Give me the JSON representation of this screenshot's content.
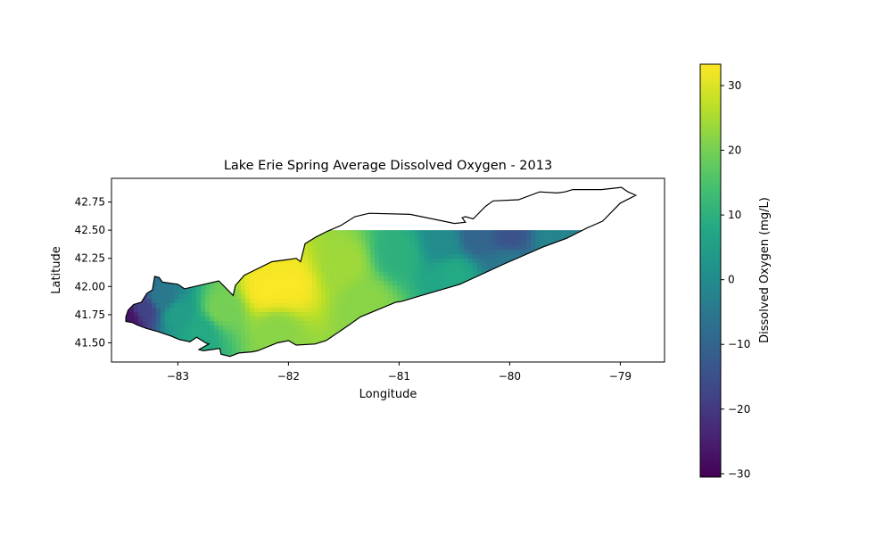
{
  "chart_data": {
    "type": "heatmap",
    "title": "Lake Erie Spring Average Dissolved Oxygen - 2013",
    "xlabel": "Longitude",
    "ylabel": "Latitude",
    "xlim": [
      -83.6,
      -78.6
    ],
    "ylim": [
      41.33,
      42.96
    ],
    "x_ticks": [
      -83,
      -82,
      -81,
      -80,
      -79
    ],
    "y_ticks": [
      41.5,
      41.75,
      42.0,
      42.25,
      42.5,
      42.75
    ],
    "x_tick_labels": [
      "−83",
      "−82",
      "−81",
      "−80",
      "−79"
    ],
    "y_tick_labels": [
      "41.50",
      "41.75",
      "42.00",
      "42.25",
      "42.50",
      "42.75"
    ],
    "grid": false,
    "colormap": "viridis",
    "colorbar": {
      "label": "Dissolved Oxygen (mg/L)",
      "range": [
        -30.5,
        33.3
      ],
      "ticks": [
        -30,
        -20,
        -10,
        0,
        10,
        20,
        30
      ],
      "tick_labels": [
        "−30",
        "−20",
        "−10",
        "0",
        "10",
        "20",
        "30"
      ]
    },
    "field_samples": [
      {
        "lon": -83.45,
        "lat": 41.72,
        "value": -27
      },
      {
        "lon": -83.3,
        "lat": 41.8,
        "value": -18
      },
      {
        "lon": -83.15,
        "lat": 41.9,
        "value": -5
      },
      {
        "lon": -83.0,
        "lat": 41.75,
        "value": 5
      },
      {
        "lon": -82.8,
        "lat": 41.6,
        "value": 8
      },
      {
        "lon": -82.6,
        "lat": 41.8,
        "value": 20
      },
      {
        "lon": -82.2,
        "lat": 41.98,
        "value": 33
      },
      {
        "lon": -82.0,
        "lat": 42.0,
        "value": 33
      },
      {
        "lon": -82.1,
        "lat": 41.6,
        "value": 22
      },
      {
        "lon": -81.5,
        "lat": 42.2,
        "value": 24
      },
      {
        "lon": -81.3,
        "lat": 41.85,
        "value": 22
      },
      {
        "lon": -81.0,
        "lat": 42.3,
        "value": 10
      },
      {
        "lon": -80.6,
        "lat": 42.4,
        "value": 0
      },
      {
        "lon": -80.3,
        "lat": 42.45,
        "value": -10
      },
      {
        "lon": -80.0,
        "lat": 42.45,
        "value": -14
      },
      {
        "lon": -79.6,
        "lat": 42.45,
        "value": -2
      },
      {
        "lon": -80.5,
        "lat": 42.1,
        "value": 8
      },
      {
        "lon": -80.0,
        "lat": 42.2,
        "value": -5
      }
    ]
  }
}
